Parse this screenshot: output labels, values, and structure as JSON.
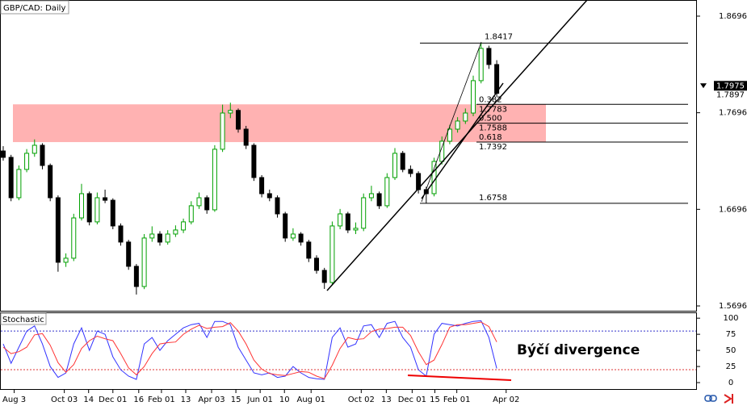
{
  "chart_data": [
    {
      "type": "candlestick",
      "title": "GBP/CAD: Daily",
      "candles": [
        [
          1.73,
          1.735,
          1.72,
          1.7234
        ],
        [
          1.7234,
          1.726,
          1.678,
          1.6816
        ],
        [
          1.6816,
          1.715,
          1.679,
          1.7109
        ],
        [
          1.7109,
          1.732,
          1.708,
          1.7276
        ],
        [
          1.7276,
          1.742,
          1.724,
          1.7359
        ],
        [
          1.7359,
          1.738,
          1.711,
          1.715
        ],
        [
          1.715,
          1.717,
          1.678,
          1.6816
        ],
        [
          1.6816,
          1.684,
          1.605,
          1.6148
        ],
        [
          1.6148,
          1.624,
          1.61,
          1.619
        ],
        [
          1.619,
          1.665,
          1.616,
          1.6607
        ],
        [
          1.6607,
          1.696,
          1.658,
          1.6858
        ],
        [
          1.6858,
          1.688,
          1.653,
          1.6566
        ],
        [
          1.6566,
          1.687,
          1.654,
          1.6816
        ],
        [
          1.6816,
          1.69,
          1.676,
          1.679
        ],
        [
          1.679,
          1.681,
          1.649,
          1.6524
        ],
        [
          1.6524,
          1.655,
          1.632,
          1.6357
        ],
        [
          1.6357,
          1.638,
          1.607,
          1.6106
        ],
        [
          1.6106,
          1.613,
          1.5814,
          1.5897
        ],
        [
          1.5897,
          1.644,
          1.587,
          1.6399
        ],
        [
          1.6399,
          1.652,
          1.636,
          1.644
        ],
        [
          1.644,
          1.647,
          1.632,
          1.6357
        ],
        [
          1.6357,
          1.648,
          1.633,
          1.644
        ],
        [
          1.644,
          1.653,
          1.641,
          1.6482
        ],
        [
          1.6482,
          1.66,
          1.645,
          1.6566
        ],
        [
          1.6566,
          1.678,
          1.654,
          1.6733
        ],
        [
          1.6733,
          1.687,
          1.67,
          1.6816
        ],
        [
          1.6816,
          1.684,
          1.665,
          1.6691
        ],
        [
          1.6691,
          1.736,
          1.667,
          1.7318
        ],
        [
          1.7318,
          1.778,
          1.729,
          1.7693
        ],
        [
          1.7693,
          1.78,
          1.764,
          1.772
        ],
        [
          1.772,
          1.774,
          1.749,
          1.7526
        ],
        [
          1.7526,
          1.756,
          1.732,
          1.7359
        ],
        [
          1.7359,
          1.738,
          1.699,
          1.7025
        ],
        [
          1.7025,
          1.705,
          1.682,
          1.6858
        ],
        [
          1.6858,
          1.69,
          1.678,
          1.6816
        ],
        [
          1.6816,
          1.684,
          1.661,
          1.6649
        ],
        [
          1.6649,
          1.667,
          1.636,
          1.6399
        ],
        [
          1.6399,
          1.65,
          1.637,
          1.644
        ],
        [
          1.644,
          1.646,
          1.632,
          1.6357
        ],
        [
          1.6357,
          1.638,
          1.615,
          1.619
        ],
        [
          1.619,
          1.622,
          1.603,
          1.6064
        ],
        [
          1.6064,
          1.609,
          1.5872,
          1.5939
        ],
        [
          1.5939,
          1.657,
          1.591,
          1.6524
        ],
        [
          1.6524,
          1.67,
          1.649,
          1.6649
        ],
        [
          1.6649,
          1.667,
          1.645,
          1.6482
        ],
        [
          1.6482,
          1.656,
          1.644,
          1.65
        ],
        [
          1.65,
          1.686,
          1.647,
          1.6816
        ],
        [
          1.6816,
          1.694,
          1.678,
          1.6858
        ],
        [
          1.6858,
          1.688,
          1.67,
          1.6733
        ],
        [
          1.6733,
          1.707,
          1.671,
          1.7025
        ],
        [
          1.7025,
          1.733,
          1.7,
          1.7276
        ],
        [
          1.7276,
          1.73,
          1.708,
          1.7109
        ],
        [
          1.7109,
          1.715,
          1.703,
          1.7067
        ],
        [
          1.7067,
          1.709,
          1.686,
          1.69
        ],
        [
          1.69,
          1.693,
          1.6758,
          1.6858
        ],
        [
          1.6858,
          1.723,
          1.683,
          1.7192
        ],
        [
          1.7192,
          1.745,
          1.716,
          1.7401
        ],
        [
          1.7401,
          1.757,
          1.737,
          1.7526
        ],
        [
          1.7526,
          1.765,
          1.749,
          1.761
        ],
        [
          1.761,
          1.774,
          1.758,
          1.7693
        ],
        [
          1.7693,
          1.808,
          1.766,
          1.8028
        ],
        [
          1.8028,
          1.8417,
          1.8,
          1.8362
        ],
        [
          1.8362,
          1.839,
          1.815,
          1.8195
        ],
        [
          1.8195,
          1.824,
          1.786,
          1.7897
        ]
      ],
      "up_color": "#00a000",
      "down_color": "#000000",
      "ylim": [
        1.5646,
        1.8863
      ],
      "yticks": [
        1.5696,
        1.6696,
        1.7696,
        1.8696
      ],
      "xlim": [
        -0.41,
        88.45
      ],
      "xticks": [
        {
          "value": 1.4,
          "label": "Aug 3"
        },
        {
          "value": 7.8,
          "label": "Oct 03"
        },
        {
          "value": 10.9,
          "label": "14"
        },
        {
          "value": 14.0,
          "label": "Dec 01"
        },
        {
          "value": 17.3,
          "label": "16"
        },
        {
          "value": 20.2,
          "label": "Feb 01"
        },
        {
          "value": 23.3,
          "label": "13"
        },
        {
          "value": 26.6,
          "label": "Apr 03"
        },
        {
          "value": 29.7,
          "label": "15"
        },
        {
          "value": 32.8,
          "label": "Jun 01"
        },
        {
          "value": 35.9,
          "label": "10"
        },
        {
          "value": 39.3,
          "label": "Aug 01"
        },
        {
          "value": 45.7,
          "label": "Oct 02"
        },
        {
          "value": 48.9,
          "label": "13"
        },
        {
          "value": 52.2,
          "label": "Dec 01"
        },
        {
          "value": 55.1,
          "label": "15"
        },
        {
          "value": 57.9,
          "label": "Feb 01"
        },
        {
          "value": 64.2,
          "label": "Apr 02"
        }
      ],
      "price_labels": [
        1.7975,
        1.7897
      ],
      "zone_color": "#ffaaaa",
      "fibonacci": {
        "high": 1.8417,
        "low": 1.6758,
        "levels": [
          {
            "ratio": 0.382,
            "price": 1.7783
          },
          {
            "ratio": {
              "value": 0.5,
              "label": "0.500"
            },
            "price": 1.7588
          },
          {
            "ratio": 0.618,
            "price": 1.7392
          }
        ]
      }
    },
    {
      "type": "line",
      "title": "Stochastic",
      "series": [
        {
          "color": "#3333ff",
          "values": [
            60,
            30,
            55,
            80,
            88,
            60,
            25,
            8,
            15,
            60,
            85,
            50,
            80,
            75,
            40,
            20,
            10,
            5,
            60,
            70,
            50,
            65,
            75,
            85,
            90,
            92,
            70,
            95,
            95,
            90,
            55,
            35,
            15,
            12,
            15,
            8,
            10,
            25,
            15,
            8,
            6,
            5,
            70,
            85,
            55,
            60,
            88,
            90,
            70,
            92,
            95,
            70,
            55,
            20,
            10,
            75,
            92,
            90,
            88,
            92,
            95,
            96,
            70,
            22
          ]
        },
        {
          "color": "#ff3333",
          "values": [
            55,
            45,
            48,
            55,
            74,
            76,
            58,
            31,
            16,
            28,
            53,
            65,
            72,
            68,
            65,
            45,
            23,
            12,
            25,
            45,
            60,
            62,
            63,
            75,
            83,
            89,
            84,
            86,
            87,
            93,
            80,
            60,
            35,
            21,
            14,
            12,
            11,
            14,
            17,
            16,
            10,
            6,
            27,
            53,
            70,
            67,
            68,
            79,
            83,
            84,
            86,
            86,
            73,
            48,
            28,
            35,
            59,
            86,
            90,
            90,
            92,
            94,
            87,
            63
          ]
        }
      ],
      "levels": [
        {
          "value": 80,
          "color": "#3333cc"
        },
        {
          "value": 20,
          "color": "#dd3333"
        }
      ],
      "ylim": [
        -10,
        109
      ],
      "yticks": [
        0,
        25,
        50,
        75,
        100
      ],
      "annotation": "Býčí divergence"
    }
  ]
}
